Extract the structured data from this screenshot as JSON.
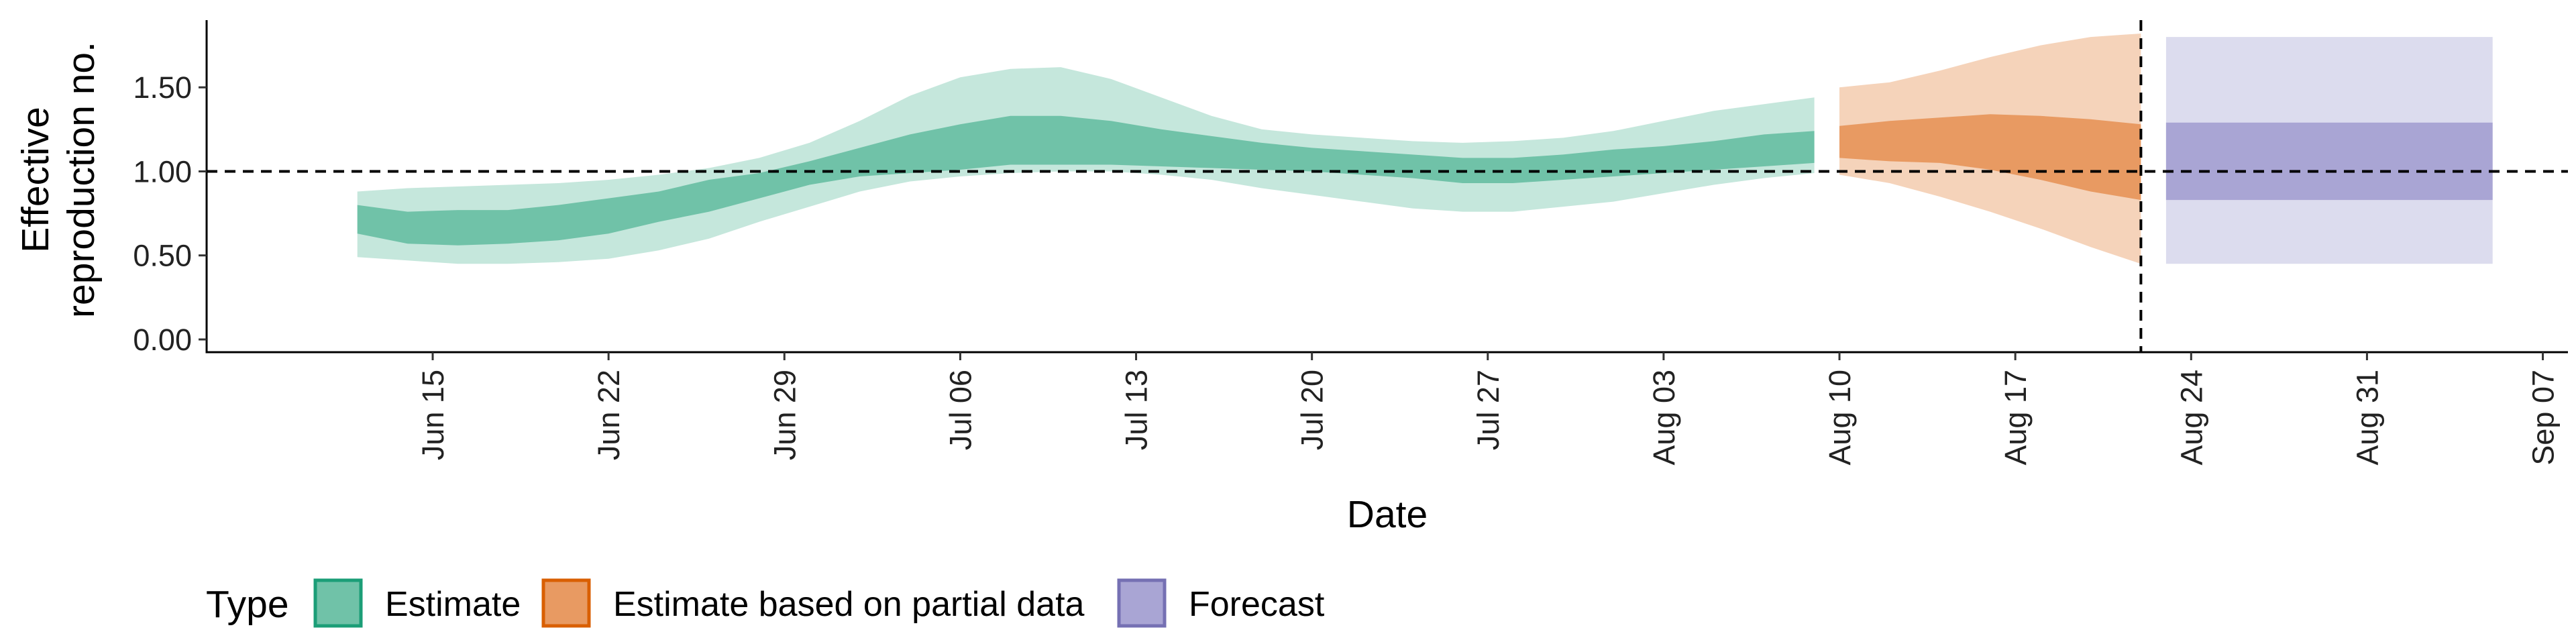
{
  "chart_data": {
    "type": "area",
    "xlabel": "Date",
    "ylabel": [
      "Effective",
      "reproduction no."
    ],
    "ylim": [
      0,
      1.9
    ],
    "y_ticks": [
      0.0,
      0.5,
      1.0,
      1.5
    ],
    "y_tick_labels": [
      "0.00",
      "0.50",
      "1.00",
      "1.50"
    ],
    "x_range": [
      "2020-06-06",
      "2020-09-08"
    ],
    "x_ticks": [
      "2020-06-15",
      "2020-06-22",
      "2020-06-29",
      "2020-07-06",
      "2020-07-13",
      "2020-07-20",
      "2020-07-27",
      "2020-08-03",
      "2020-08-10",
      "2020-08-17",
      "2020-08-24",
      "2020-08-31",
      "2020-09-07"
    ],
    "x_tick_labels": [
      "Jun 15",
      "Jun 22",
      "Jun 29",
      "Jul 06",
      "Jul 13",
      "Jul 20",
      "Jul 27",
      "Aug 03",
      "Aug 10",
      "Aug 17",
      "Aug 24",
      "Aug 31",
      "Sep 07"
    ],
    "grid": false,
    "reference_hline": 1.0,
    "reference_vline": "2020-08-22",
    "legend": {
      "title": "Type",
      "position": "bottom-left",
      "items": [
        {
          "label": "Estimate",
          "fill": "#70c2a8",
          "border": "#1b9e77"
        },
        {
          "label": "Estimate based on partial data",
          "fill": "#e89a62",
          "border": "#d95f02"
        },
        {
          "label": "Forecast",
          "fill": "#a9a5d4",
          "border": "#7570b3"
        }
      ]
    },
    "series": [
      {
        "name": "Estimate",
        "color_inner": "#70c2a8",
        "color_outer": "#c5e7dc",
        "x": [
          "2020-06-12",
          "2020-06-14",
          "2020-06-16",
          "2020-06-18",
          "2020-06-20",
          "2020-06-22",
          "2020-06-24",
          "2020-06-26",
          "2020-06-28",
          "2020-06-30",
          "2020-07-02",
          "2020-07-04",
          "2020-07-06",
          "2020-07-08",
          "2020-07-10",
          "2020-07-12",
          "2020-07-14",
          "2020-07-16",
          "2020-07-18",
          "2020-07-20",
          "2020-07-22",
          "2020-07-24",
          "2020-07-26",
          "2020-07-28",
          "2020-07-30",
          "2020-08-01",
          "2020-08-03",
          "2020-08-05",
          "2020-08-07",
          "2020-08-09"
        ],
        "outer_upper": [
          0.88,
          0.9,
          0.91,
          0.92,
          0.93,
          0.95,
          0.98,
          1.02,
          1.08,
          1.17,
          1.3,
          1.45,
          1.56,
          1.61,
          1.62,
          1.55,
          1.44,
          1.33,
          1.25,
          1.22,
          1.2,
          1.18,
          1.17,
          1.18,
          1.2,
          1.24,
          1.3,
          1.36,
          1.4,
          1.44
        ],
        "inner_upper": [
          0.8,
          0.76,
          0.77,
          0.77,
          0.8,
          0.84,
          0.88,
          0.95,
          0.99,
          1.06,
          1.14,
          1.22,
          1.28,
          1.33,
          1.33,
          1.3,
          1.25,
          1.21,
          1.17,
          1.14,
          1.12,
          1.1,
          1.08,
          1.08,
          1.1,
          1.13,
          1.15,
          1.18,
          1.22,
          1.24
        ],
        "inner_lower": [
          0.63,
          0.57,
          0.56,
          0.57,
          0.59,
          0.63,
          0.7,
          0.76,
          0.84,
          0.92,
          0.97,
          0.99,
          1.01,
          1.04,
          1.04,
          1.04,
          1.03,
          1.02,
          1.01,
          1.0,
          0.98,
          0.96,
          0.93,
          0.93,
          0.95,
          0.97,
          0.99,
          1.01,
          1.03,
          1.05
        ],
        "outer_lower": [
          0.49,
          0.47,
          0.45,
          0.45,
          0.46,
          0.48,
          0.53,
          0.6,
          0.7,
          0.79,
          0.88,
          0.94,
          0.97,
          0.99,
          1.0,
          1.0,
          0.98,
          0.95,
          0.9,
          0.86,
          0.82,
          0.78,
          0.76,
          0.76,
          0.79,
          0.82,
          0.87,
          0.92,
          0.96,
          0.99
        ]
      },
      {
        "name": "Estimate based on partial data",
        "color_inner": "#e89a62",
        "color_outer": "#f5d3ba",
        "x": [
          "2020-08-10",
          "2020-08-12",
          "2020-08-14",
          "2020-08-16",
          "2020-08-18",
          "2020-08-20",
          "2020-08-22"
        ],
        "outer_upper": [
          1.5,
          1.53,
          1.6,
          1.68,
          1.75,
          1.8,
          1.82
        ],
        "inner_upper": [
          1.27,
          1.3,
          1.32,
          1.34,
          1.33,
          1.31,
          1.28
        ],
        "inner_lower": [
          1.08,
          1.06,
          1.05,
          1.01,
          0.95,
          0.88,
          0.83
        ],
        "outer_lower": [
          0.98,
          0.93,
          0.85,
          0.76,
          0.66,
          0.55,
          0.45
        ]
      },
      {
        "name": "Forecast",
        "color_inner": "#a9a5d4",
        "color_outer": "#dcdcee",
        "x": [
          "2020-08-23",
          "2020-09-05"
        ],
        "outer_upper": [
          1.8,
          1.8
        ],
        "inner_upper": [
          1.29,
          1.29
        ],
        "inner_lower": [
          0.83,
          0.83
        ],
        "outer_lower": [
          0.45,
          0.45
        ]
      }
    ]
  }
}
